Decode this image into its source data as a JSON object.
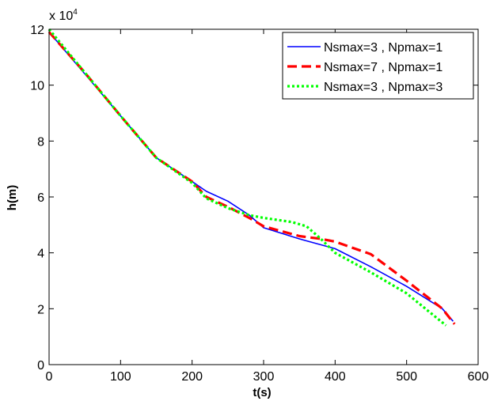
{
  "chart_data": {
    "type": "line",
    "title": "",
    "xlabel": "t(s)",
    "ylabel": "h(m)",
    "xlim": [
      0,
      600
    ],
    "ylim": [
      0,
      120000
    ],
    "xticks": [
      0,
      100,
      200,
      300,
      400,
      500,
      600
    ],
    "xtick_labels": [
      "0",
      "100",
      "200",
      "300",
      "400",
      "500",
      "600"
    ],
    "yticks": [
      0,
      20000,
      40000,
      60000,
      80000,
      100000,
      120000
    ],
    "ytick_labels": [
      "0",
      "2",
      "4",
      "6",
      "8",
      "10",
      "12"
    ],
    "y_exponent_label": "x 10",
    "y_exponent_power": "4",
    "grid": false,
    "legend_position": "top-right",
    "series": [
      {
        "name": "Nsmax=3 , Npmax=1",
        "color": "#0000ff",
        "style": "solid",
        "x": [
          0,
          50,
          100,
          150,
          200,
          220,
          250,
          280,
          300,
          350,
          400,
          450,
          500,
          550,
          565
        ],
        "y": [
          119000,
          104000,
          89000,
          74000,
          65500,
          62000,
          58500,
          53500,
          49000,
          45000,
          41500,
          35000,
          28000,
          20000,
          15500
        ]
      },
      {
        "name": "Nsmax=7 , Npmax=1",
        "color": "#ff0000",
        "style": "dashed",
        "x": [
          0,
          50,
          100,
          150,
          200,
          220,
          250,
          280,
          300,
          350,
          380,
          400,
          450,
          500,
          550,
          567
        ],
        "y": [
          119000,
          104500,
          89000,
          74000,
          65500,
          60000,
          56500,
          52500,
          49500,
          46000,
          45000,
          44000,
          39500,
          30000,
          20000,
          14500
        ]
      },
      {
        "name": "Nsmax=3 , Npmax=3",
        "color": "#00ff00",
        "style": "dotted",
        "x": [
          0,
          50,
          100,
          150,
          200,
          220,
          250,
          280,
          300,
          340,
          360,
          380,
          400,
          450,
          500,
          555
        ],
        "y": [
          120000,
          104500,
          89000,
          74000,
          65000,
          59500,
          56000,
          53500,
          52500,
          51000,
          49500,
          45000,
          40000,
          33000,
          25500,
          14000
        ]
      }
    ]
  }
}
